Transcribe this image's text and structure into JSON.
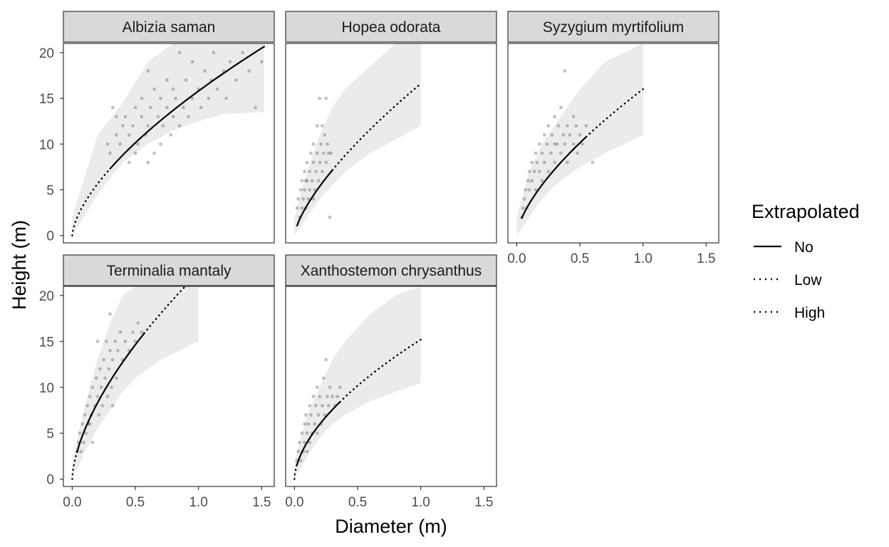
{
  "chart_data": {
    "type": "scatter",
    "xlabel": "Diameter (m)",
    "ylabel": "Height (m)",
    "xlim": [
      -0.07,
      1.6
    ],
    "ylim": [
      -0.8,
      21.0
    ],
    "x_ticks": [
      0,
      0.5,
      1,
      1.5
    ],
    "x_tick_labels": [
      "0.0",
      "0.5",
      "1.0",
      "1.5"
    ],
    "y_ticks": [
      0,
      5,
      10,
      15,
      20
    ],
    "y_tick_labels": [
      "0",
      "5",
      "10",
      "15",
      "20"
    ],
    "grid": false,
    "legend": {
      "title": "Extrapolated",
      "position": "right",
      "entries": [
        {
          "label": "No",
          "linetype": "solid"
        },
        {
          "label": "Low",
          "linetype": "dotted"
        },
        {
          "label": "High",
          "linetype": "dotted"
        }
      ]
    },
    "colors": {
      "points": "#4d4d4d",
      "ribbon": "#ebebeb",
      "line": "#000000",
      "strip_fill": "#d9d9d9",
      "panel_border": "#333333"
    },
    "panels": [
      {
        "title": "Albizia saman",
        "curve": {
          "a": 15.8,
          "b": 0.64
        },
        "observed_range": [
          0.3,
          1.52
        ],
        "extrap_range": [
          0.0,
          0.3
        ],
        "ribbon": {
          "x": [
            0.0,
            0.2,
            0.4,
            0.6,
            0.8,
            1.0,
            1.2,
            1.52
          ],
          "lower": [
            0,
            4.5,
            8,
            10,
            11.5,
            12.5,
            13.3,
            13.5
          ],
          "upper": [
            2,
            11,
            14.5,
            19,
            21,
            21,
            21,
            21
          ]
        },
        "points": [
          [
            0.28,
            10
          ],
          [
            0.3,
            9
          ],
          [
            0.32,
            14
          ],
          [
            0.35,
            11
          ],
          [
            0.38,
            10
          ],
          [
            0.4,
            12
          ],
          [
            0.42,
            13
          ],
          [
            0.45,
            8
          ],
          [
            0.45,
            11
          ],
          [
            0.48,
            12
          ],
          [
            0.5,
            9
          ],
          [
            0.5,
            14
          ],
          [
            0.52,
            10
          ],
          [
            0.55,
            13
          ],
          [
            0.55,
            15
          ],
          [
            0.58,
            11
          ],
          [
            0.6,
            8
          ],
          [
            0.6,
            12
          ],
          [
            0.62,
            14
          ],
          [
            0.65,
            9
          ],
          [
            0.65,
            16
          ],
          [
            0.68,
            13
          ],
          [
            0.7,
            10
          ],
          [
            0.7,
            15
          ],
          [
            0.72,
            12
          ],
          [
            0.75,
            14
          ],
          [
            0.75,
            17
          ],
          [
            0.78,
            11
          ],
          [
            0.8,
            13
          ],
          [
            0.8,
            16
          ],
          [
            0.82,
            15
          ],
          [
            0.85,
            12
          ],
          [
            0.88,
            14
          ],
          [
            0.9,
            17
          ],
          [
            0.92,
            13
          ],
          [
            0.95,
            15
          ],
          [
            0.95,
            19
          ],
          [
            1.0,
            16
          ],
          [
            1.02,
            14
          ],
          [
            1.05,
            18
          ],
          [
            1.08,
            15
          ],
          [
            1.1,
            17
          ],
          [
            1.12,
            20
          ],
          [
            1.15,
            16
          ],
          [
            1.2,
            18
          ],
          [
            1.22,
            15
          ],
          [
            1.25,
            19
          ],
          [
            1.3,
            17
          ],
          [
            1.35,
            20
          ],
          [
            1.4,
            18
          ],
          [
            1.45,
            14
          ],
          [
            1.5,
            19
          ],
          [
            0.35,
            13
          ],
          [
            0.6,
            18
          ],
          [
            0.85,
            20
          ]
        ]
      },
      {
        "title": "Hopea odorata",
        "curve": {
          "a": 16.6,
          "b": 0.7
        },
        "observed_range": [
          0.02,
          0.3
        ],
        "extrap_range": [
          0.3,
          1.0
        ],
        "ribbon": {
          "x": [
            0.0,
            0.1,
            0.2,
            0.3,
            0.4,
            0.6,
            0.8,
            1.0
          ],
          "lower": [
            0,
            2,
            4,
            5.5,
            7,
            9,
            10.5,
            12
          ],
          "upper": [
            2,
            7,
            11,
            14,
            16,
            18.5,
            21,
            21
          ]
        },
        "points": [
          [
            0.02,
            3
          ],
          [
            0.03,
            4
          ],
          [
            0.04,
            2
          ],
          [
            0.05,
            5
          ],
          [
            0.06,
            3
          ],
          [
            0.06,
            6
          ],
          [
            0.07,
            4
          ],
          [
            0.08,
            7
          ],
          [
            0.08,
            5
          ],
          [
            0.09,
            3
          ],
          [
            0.1,
            6
          ],
          [
            0.1,
            8
          ],
          [
            0.11,
            4
          ],
          [
            0.12,
            7
          ],
          [
            0.12,
            5
          ],
          [
            0.13,
            9
          ],
          [
            0.14,
            6
          ],
          [
            0.15,
            8
          ],
          [
            0.15,
            10
          ],
          [
            0.16,
            5
          ],
          [
            0.17,
            7
          ],
          [
            0.18,
            9
          ],
          [
            0.18,
            12
          ],
          [
            0.19,
            6
          ],
          [
            0.2,
            8
          ],
          [
            0.2,
            15
          ],
          [
            0.21,
            10
          ],
          [
            0.22,
            7
          ],
          [
            0.23,
            9
          ],
          [
            0.24,
            11
          ],
          [
            0.25,
            8
          ],
          [
            0.25,
            15
          ],
          [
            0.26,
            10
          ],
          [
            0.27,
            9
          ],
          [
            0.28,
            2
          ],
          [
            0.29,
            9
          ],
          [
            0.22,
            12
          ],
          [
            0.15,
            4
          ],
          [
            0.09,
            6
          ]
        ]
      },
      {
        "title": "Syzygium myrtifolium",
        "curve": {
          "a": 16.0,
          "b": 0.66
        },
        "observed_range": [
          0.04,
          0.55
        ],
        "extrap_range": [
          0.55,
          1.0
        ],
        "ribbon": {
          "x": [
            0.0,
            0.1,
            0.2,
            0.3,
            0.4,
            0.5,
            0.7,
            1.0
          ],
          "lower": [
            0,
            2,
            4,
            5.5,
            6.5,
            7.5,
            9,
            11
          ],
          "upper": [
            2,
            7,
            10,
            12,
            14,
            16,
            19,
            21
          ]
        },
        "points": [
          [
            0.04,
            2
          ],
          [
            0.05,
            3
          ],
          [
            0.06,
            4
          ],
          [
            0.07,
            5
          ],
          [
            0.08,
            3
          ],
          [
            0.09,
            6
          ],
          [
            0.1,
            5
          ],
          [
            0.1,
            7
          ],
          [
            0.12,
            6
          ],
          [
            0.12,
            8
          ],
          [
            0.14,
            7
          ],
          [
            0.15,
            5
          ],
          [
            0.15,
            9
          ],
          [
            0.16,
            8
          ],
          [
            0.18,
            7
          ],
          [
            0.18,
            10
          ],
          [
            0.2,
            9
          ],
          [
            0.2,
            6
          ],
          [
            0.22,
            11
          ],
          [
            0.22,
            8
          ],
          [
            0.24,
            10
          ],
          [
            0.25,
            7
          ],
          [
            0.25,
            12
          ],
          [
            0.27,
            9
          ],
          [
            0.28,
            11
          ],
          [
            0.3,
            8
          ],
          [
            0.3,
            13
          ],
          [
            0.32,
            10
          ],
          [
            0.33,
            12
          ],
          [
            0.35,
            9
          ],
          [
            0.35,
            14
          ],
          [
            0.37,
            11
          ],
          [
            0.38,
            10
          ],
          [
            0.4,
            12
          ],
          [
            0.4,
            8
          ],
          [
            0.42,
            11
          ],
          [
            0.45,
            13
          ],
          [
            0.45,
            10
          ],
          [
            0.47,
            12
          ],
          [
            0.48,
            9
          ],
          [
            0.5,
            11
          ],
          [
            0.52,
            10
          ],
          [
            0.55,
            12
          ],
          [
            0.3,
            10
          ],
          [
            0.38,
            18
          ],
          [
            0.6,
            8
          ]
        ]
      },
      {
        "title": "Terminalia mantaly",
        "curve": {
          "a": 22.5,
          "b": 0.62
        },
        "observed_range": [
          0.04,
          0.57
        ],
        "extrap_range": [
          0.0,
          0.04,
          0.57,
          1.0
        ],
        "ribbon": {
          "x": [
            0.0,
            0.1,
            0.2,
            0.3,
            0.4,
            0.5,
            0.7,
            1.0
          ],
          "lower": [
            0,
            3,
            5.5,
            7.5,
            9.5,
            11,
            13,
            15
          ],
          "upper": [
            2,
            8,
            13,
            17,
            20,
            21,
            21,
            21
          ]
        },
        "points": [
          [
            0.04,
            3
          ],
          [
            0.05,
            4
          ],
          [
            0.06,
            5
          ],
          [
            0.07,
            3
          ],
          [
            0.08,
            6
          ],
          [
            0.09,
            4
          ],
          [
            0.1,
            7
          ],
          [
            0.11,
            5
          ],
          [
            0.12,
            8
          ],
          [
            0.13,
            6
          ],
          [
            0.14,
            9
          ],
          [
            0.15,
            7
          ],
          [
            0.16,
            4
          ],
          [
            0.16,
            10
          ],
          [
            0.18,
            8
          ],
          [
            0.19,
            11
          ],
          [
            0.2,
            9
          ],
          [
            0.21,
            7
          ],
          [
            0.22,
            12
          ],
          [
            0.23,
            10
          ],
          [
            0.24,
            8
          ],
          [
            0.25,
            13
          ],
          [
            0.26,
            11
          ],
          [
            0.27,
            15
          ],
          [
            0.28,
            9
          ],
          [
            0.29,
            12
          ],
          [
            0.3,
            14
          ],
          [
            0.3,
            18
          ],
          [
            0.31,
            10
          ],
          [
            0.32,
            13
          ],
          [
            0.34,
            15
          ],
          [
            0.35,
            11
          ],
          [
            0.36,
            14
          ],
          [
            0.38,
            16
          ],
          [
            0.4,
            13
          ],
          [
            0.42,
            15
          ],
          [
            0.45,
            14
          ],
          [
            0.48,
            16
          ],
          [
            0.5,
            15
          ],
          [
            0.52,
            17
          ],
          [
            0.55,
            16
          ],
          [
            0.2,
            15
          ],
          [
            0.14,
            6
          ],
          [
            0.32,
            8
          ]
        ]
      },
      {
        "title": "Xanthostemon chrysanthus",
        "curve": {
          "a": 15.2,
          "b": 0.58
        },
        "observed_range": [
          0.02,
          0.36
        ],
        "extrap_range": [
          0.0,
          0.02,
          0.36,
          1.0
        ],
        "ribbon": {
          "x": [
            0.0,
            0.1,
            0.2,
            0.3,
            0.4,
            0.6,
            0.8,
            1.0
          ],
          "lower": [
            0,
            2.5,
            4.5,
            6,
            7,
            8.5,
            9.5,
            10.5
          ],
          "upper": [
            2,
            7,
            10,
            13,
            15,
            18,
            20,
            21
          ]
        },
        "points": [
          [
            0.02,
            2
          ],
          [
            0.03,
            3
          ],
          [
            0.04,
            4
          ],
          [
            0.05,
            2
          ],
          [
            0.06,
            5
          ],
          [
            0.07,
            3
          ],
          [
            0.08,
            6
          ],
          [
            0.08,
            4
          ],
          [
            0.09,
            7
          ],
          [
            0.1,
            5
          ],
          [
            0.11,
            6
          ],
          [
            0.12,
            8
          ],
          [
            0.12,
            4
          ],
          [
            0.13,
            7
          ],
          [
            0.14,
            5
          ],
          [
            0.15,
            9
          ],
          [
            0.16,
            6
          ],
          [
            0.17,
            8
          ],
          [
            0.18,
            10
          ],
          [
            0.19,
            7
          ],
          [
            0.2,
            9
          ],
          [
            0.21,
            6
          ],
          [
            0.22,
            8
          ],
          [
            0.23,
            11
          ],
          [
            0.24,
            7
          ],
          [
            0.25,
            13
          ],
          [
            0.26,
            9
          ],
          [
            0.27,
            8
          ],
          [
            0.28,
            10
          ],
          [
            0.3,
            9
          ],
          [
            0.32,
            8
          ],
          [
            0.34,
            9
          ],
          [
            0.36,
            10
          ],
          [
            0.1,
            3
          ],
          [
            0.18,
            5
          ]
        ]
      }
    ]
  }
}
